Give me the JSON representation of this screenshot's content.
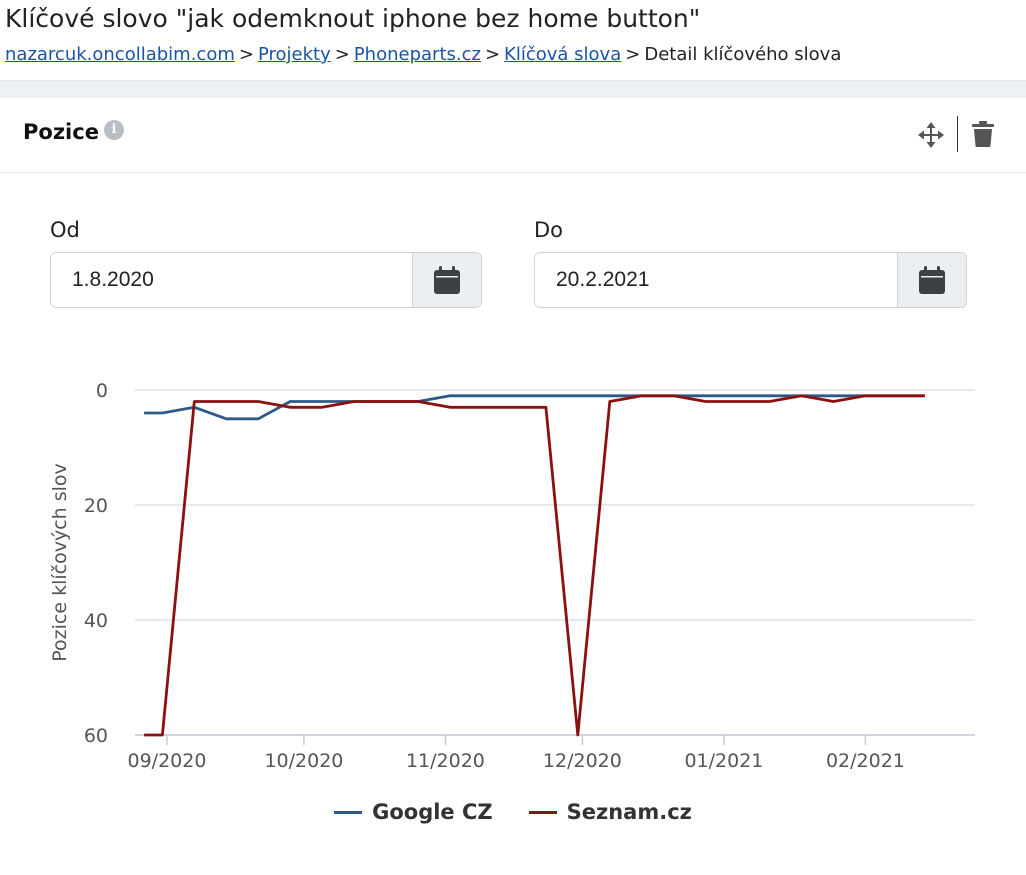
{
  "header": {
    "title": "Klíčové slovo \"jak odemknout iphone bez home button\"",
    "breadcrumb": {
      "items": [
        "nazarcuk.oncollabim.com",
        "Projekty",
        "Phoneparts.cz",
        "Klíčová slova"
      ],
      "current": "Detail klíčového slova",
      "separator": ">"
    }
  },
  "panel": {
    "title": "Pozice",
    "info_icon": "info-icon",
    "move_icon": "move-arrows-icon",
    "delete_icon": "trash-icon"
  },
  "filters": {
    "from_label": "Od",
    "from_value": "1.8.2020",
    "to_label": "Do",
    "to_value": "20.2.2021",
    "calendar_icon": "calendar-icon"
  },
  "colors": {
    "google": "#2d5987",
    "seznam": "#8b1010",
    "grid": "#dde1e4",
    "axis_text": "#555555"
  },
  "chart_data": {
    "type": "line",
    "title": "",
    "ylabel": "Pozice klíčových slov",
    "xlabel": "",
    "ylim": [
      0,
      60
    ],
    "y_reversed": true,
    "y_ticks": [
      0,
      20,
      40,
      60
    ],
    "x_range": [
      "2020-08-25",
      "2021-02-25"
    ],
    "x_ticks": [
      {
        "date": "2020-09-01",
        "label": "09/2020"
      },
      {
        "date": "2020-10-01",
        "label": "10/2020"
      },
      {
        "date": "2020-11-01",
        "label": "11/2020"
      },
      {
        "date": "2020-12-01",
        "label": "12/2020"
      },
      {
        "date": "2021-01-01",
        "label": "01/2021"
      },
      {
        "date": "2021-02-01",
        "label": "02/2021"
      }
    ],
    "grid": true,
    "legend_position": "bottom",
    "series": [
      {
        "name": "Google CZ",
        "points": [
          [
            "2020-08-27",
            4
          ],
          [
            "2020-08-31",
            4
          ],
          [
            "2020-09-07",
            3
          ],
          [
            "2020-09-14",
            5
          ],
          [
            "2020-09-21",
            5
          ],
          [
            "2020-09-28",
            2
          ],
          [
            "2020-10-05",
            2
          ],
          [
            "2020-10-12",
            2
          ],
          [
            "2020-10-19",
            2
          ],
          [
            "2020-10-26",
            2
          ],
          [
            "2020-11-02",
            1
          ],
          [
            "2020-11-09",
            1
          ],
          [
            "2020-11-16",
            1
          ],
          [
            "2020-11-23",
            1
          ],
          [
            "2020-11-30",
            1
          ],
          [
            "2020-12-07",
            1
          ],
          [
            "2020-12-14",
            1
          ],
          [
            "2020-12-21",
            1
          ],
          [
            "2020-12-28",
            1
          ],
          [
            "2021-01-04",
            1
          ],
          [
            "2021-01-11",
            1
          ],
          [
            "2021-01-18",
            1
          ],
          [
            "2021-01-25",
            1
          ],
          [
            "2021-02-01",
            1
          ],
          [
            "2021-02-08",
            1
          ],
          [
            "2021-02-14",
            1
          ]
        ]
      },
      {
        "name": "Seznam.cz",
        "points": [
          [
            "2020-08-27",
            60
          ],
          [
            "2020-08-31",
            60
          ],
          [
            "2020-09-07",
            2
          ],
          [
            "2020-09-14",
            2
          ],
          [
            "2020-09-21",
            2
          ],
          [
            "2020-09-28",
            3
          ],
          [
            "2020-10-05",
            3
          ],
          [
            "2020-10-12",
            2
          ],
          [
            "2020-10-19",
            2
          ],
          [
            "2020-10-26",
            2
          ],
          [
            "2020-11-02",
            3
          ],
          [
            "2020-11-09",
            3
          ],
          [
            "2020-11-16",
            3
          ],
          [
            "2020-11-23",
            3
          ],
          [
            "2020-11-30",
            60
          ],
          [
            "2020-12-07",
            2
          ],
          [
            "2020-12-14",
            1
          ],
          [
            "2020-12-21",
            1
          ],
          [
            "2020-12-28",
            2
          ],
          [
            "2021-01-04",
            2
          ],
          [
            "2021-01-11",
            2
          ],
          [
            "2021-01-18",
            1
          ],
          [
            "2021-01-25",
            2
          ],
          [
            "2021-02-01",
            1
          ],
          [
            "2021-02-08",
            1
          ],
          [
            "2021-02-14",
            1
          ]
        ]
      }
    ]
  }
}
